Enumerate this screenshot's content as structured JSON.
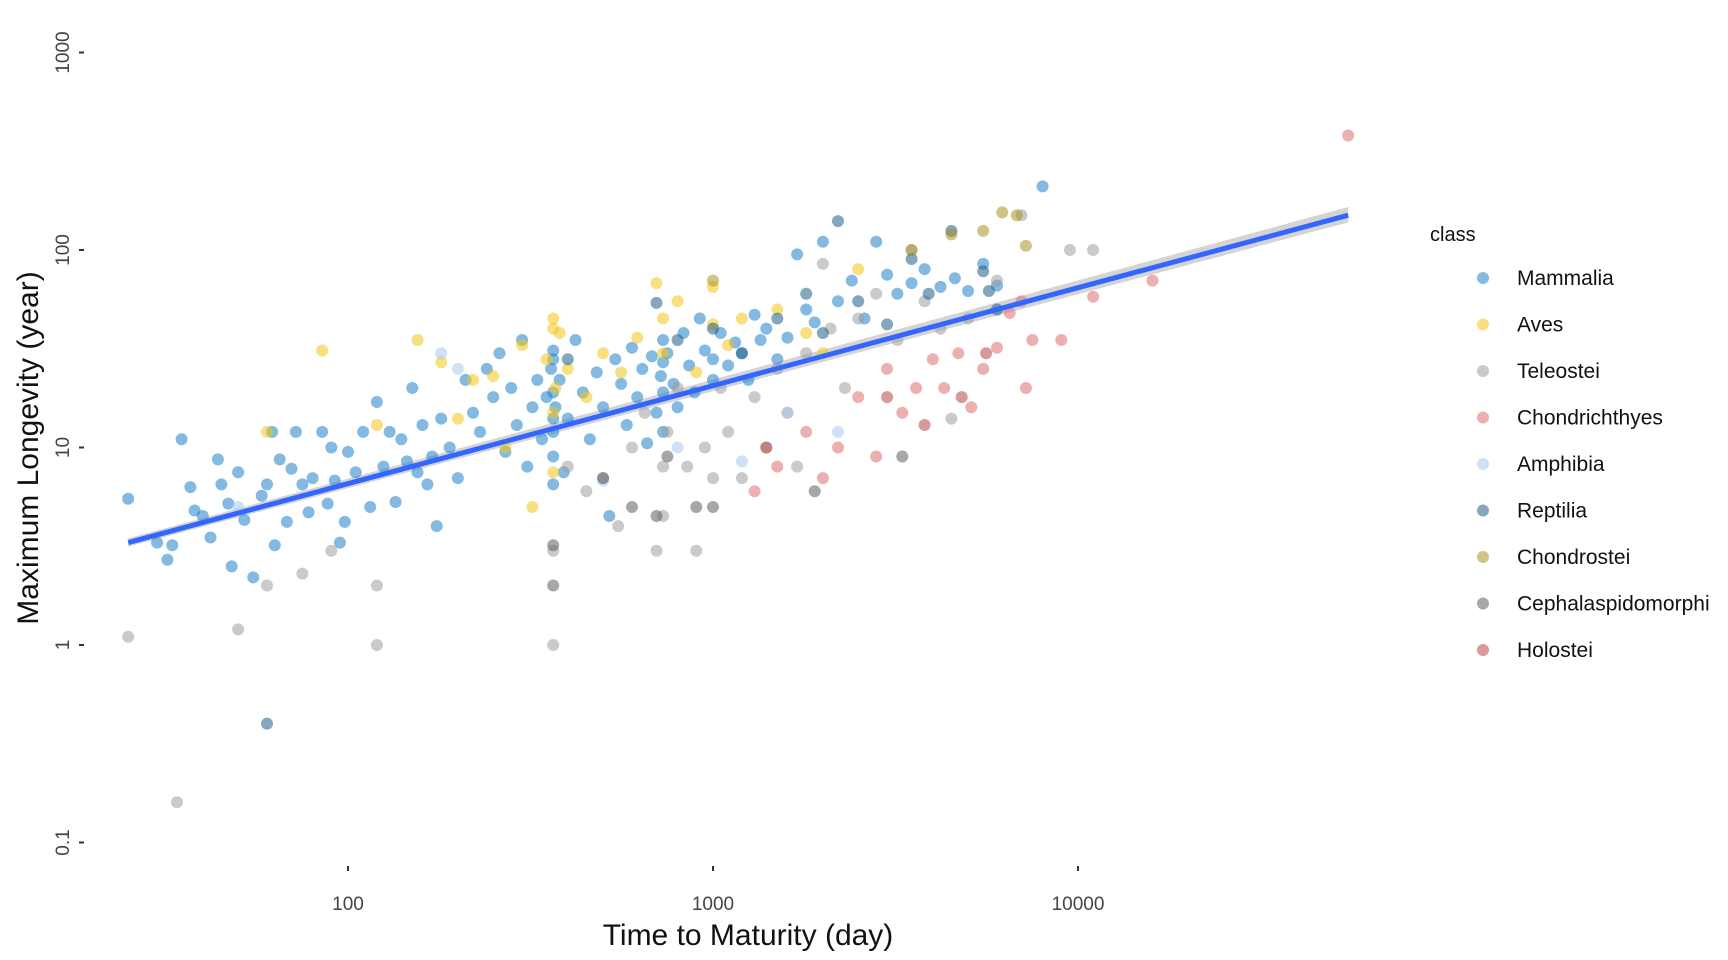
{
  "chart_data": {
    "type": "scatter",
    "title": "",
    "xlabel": "Time to Maturity (day)",
    "ylabel": "Maximum Longevity (year)",
    "x_scale": "log10",
    "y_scale": "log10",
    "xlim": [
      25,
      60000
    ],
    "ylim": [
      0.07,
      1500
    ],
    "x_ticks": [
      {
        "value": 100,
        "label": "100"
      },
      {
        "value": 1000,
        "label": "1000"
      },
      {
        "value": 10000,
        "label": "10000"
      }
    ],
    "y_ticks": [
      {
        "value": 0.1,
        "label": "0.1"
      },
      {
        "value": 1,
        "label": "1"
      },
      {
        "value": 10,
        "label": "10"
      },
      {
        "value": 100,
        "label": "100"
      },
      {
        "value": 1000,
        "label": "1000"
      }
    ],
    "grid": false,
    "legend": {
      "title": "class",
      "placement": "right"
    },
    "series": [
      {
        "name": "Mammalia",
        "color": "#1f7fc9",
        "points": [
          [
            25,
            5.5
          ],
          [
            30,
            3.3
          ],
          [
            32,
            2.7
          ],
          [
            33,
            3.2
          ],
          [
            35,
            11
          ],
          [
            37,
            6.3
          ],
          [
            38,
            4.8
          ],
          [
            40,
            4.5
          ],
          [
            42,
            3.5
          ],
          [
            44,
            8.7
          ],
          [
            45,
            6.5
          ],
          [
            47,
            5.2
          ],
          [
            48,
            2.5
          ],
          [
            50,
            7.5
          ],
          [
            52,
            4.3
          ],
          [
            55,
            2.2
          ],
          [
            58,
            5.7
          ],
          [
            60,
            6.5
          ],
          [
            62,
            12
          ],
          [
            63,
            3.2
          ],
          [
            65,
            8.7
          ],
          [
            68,
            4.2
          ],
          [
            70,
            7.8
          ],
          [
            72,
            12
          ],
          [
            75,
            6.5
          ],
          [
            78,
            4.7
          ],
          [
            80,
            7
          ],
          [
            85,
            12
          ],
          [
            88,
            5.2
          ],
          [
            90,
            10
          ],
          [
            92,
            6.8
          ],
          [
            95,
            3.3
          ],
          [
            98,
            4.2
          ],
          [
            100,
            9.5
          ],
          [
            105,
            7.5
          ],
          [
            110,
            12
          ],
          [
            115,
            5
          ],
          [
            120,
            17
          ],
          [
            125,
            8
          ],
          [
            130,
            12
          ],
          [
            135,
            5.3
          ],
          [
            140,
            11
          ],
          [
            145,
            8.5
          ],
          [
            150,
            20
          ],
          [
            155,
            7.5
          ],
          [
            160,
            13
          ],
          [
            165,
            6.5
          ],
          [
            170,
            9
          ],
          [
            175,
            4
          ],
          [
            180,
            14
          ],
          [
            190,
            10
          ],
          [
            200,
            7
          ],
          [
            210,
            22
          ],
          [
            220,
            15
          ],
          [
            230,
            12
          ],
          [
            240,
            25
          ],
          [
            250,
            18
          ],
          [
            260,
            30
          ],
          [
            270,
            9.5
          ],
          [
            280,
            20
          ],
          [
            290,
            13
          ],
          [
            300,
            35
          ],
          [
            310,
            8
          ],
          [
            320,
            16
          ],
          [
            330,
            22
          ],
          [
            340,
            11
          ],
          [
            350,
            18
          ],
          [
            360,
            25
          ],
          [
            365,
            14
          ],
          [
            365,
            28
          ],
          [
            365,
            9
          ],
          [
            365,
            19
          ],
          [
            365,
            6.5
          ],
          [
            365,
            12
          ],
          [
            365,
            31
          ],
          [
            370,
            16
          ],
          [
            380,
            22
          ],
          [
            390,
            7.5
          ],
          [
            400,
            14
          ],
          [
            420,
            35
          ],
          [
            440,
            19
          ],
          [
            460,
            11
          ],
          [
            480,
            24
          ],
          [
            500,
            16
          ],
          [
            520,
            4.5
          ],
          [
            540,
            28
          ],
          [
            560,
            21
          ],
          [
            580,
            13
          ],
          [
            600,
            32
          ],
          [
            620,
            18
          ],
          [
            640,
            25
          ],
          [
            660,
            10.5
          ],
          [
            680,
            29
          ],
          [
            700,
            15
          ],
          [
            720,
            23
          ],
          [
            730,
            35
          ],
          [
            730,
            19
          ],
          [
            730,
            12
          ],
          [
            730,
            27
          ],
          [
            750,
            30
          ],
          [
            780,
            21
          ],
          [
            800,
            16
          ],
          [
            830,
            38
          ],
          [
            860,
            26
          ],
          [
            890,
            19
          ],
          [
            920,
            45
          ],
          [
            950,
            31
          ],
          [
            1000,
            22
          ],
          [
            1000,
            28
          ],
          [
            1050,
            38
          ],
          [
            1100,
            26
          ],
          [
            1150,
            34
          ],
          [
            1200,
            30
          ],
          [
            1250,
            22
          ],
          [
            1300,
            47
          ],
          [
            1350,
            35
          ],
          [
            1400,
            40
          ],
          [
            1500,
            28
          ],
          [
            1600,
            36
          ],
          [
            1700,
            95
          ],
          [
            1800,
            50
          ],
          [
            1900,
            43
          ],
          [
            2000,
            110
          ],
          [
            2200,
            55
          ],
          [
            2400,
            70
          ],
          [
            2600,
            45
          ],
          [
            2800,
            110
          ],
          [
            3000,
            75
          ],
          [
            3200,
            60
          ],
          [
            3500,
            68
          ],
          [
            3800,
            80
          ],
          [
            4200,
            65
          ],
          [
            4600,
            72
          ],
          [
            5000,
            62
          ],
          [
            5500,
            85
          ],
          [
            6000,
            66
          ],
          [
            8000,
            210
          ]
        ]
      },
      {
        "name": "Aves",
        "color": "#f2c417",
        "points": [
          [
            60,
            12
          ],
          [
            85,
            31
          ],
          [
            120,
            13
          ],
          [
            155,
            35
          ],
          [
            180,
            27
          ],
          [
            200,
            14
          ],
          [
            220,
            22
          ],
          [
            250,
            23
          ],
          [
            270,
            10
          ],
          [
            300,
            33
          ],
          [
            320,
            5
          ],
          [
            350,
            28
          ],
          [
            365,
            45
          ],
          [
            365,
            40
          ],
          [
            365,
            15
          ],
          [
            365,
            7.5
          ],
          [
            370,
            20
          ],
          [
            380,
            38
          ],
          [
            400,
            25
          ],
          [
            450,
            18
          ],
          [
            500,
            30
          ],
          [
            560,
            24
          ],
          [
            620,
            36
          ],
          [
            700,
            68
          ],
          [
            730,
            30
          ],
          [
            730,
            45
          ],
          [
            800,
            55
          ],
          [
            900,
            24
          ],
          [
            1000,
            42
          ],
          [
            1000,
            65
          ],
          [
            1100,
            33
          ],
          [
            1200,
            45
          ],
          [
            1500,
            50
          ],
          [
            1800,
            38
          ],
          [
            2000,
            30
          ],
          [
            2500,
            80
          ]
        ]
      },
      {
        "name": "Teleostei",
        "color": "#9e9e9e",
        "points": [
          [
            25,
            1.1
          ],
          [
            34,
            0.16
          ],
          [
            50,
            1.2
          ],
          [
            60,
            2
          ],
          [
            75,
            2.3
          ],
          [
            90,
            3
          ],
          [
            120,
            1
          ],
          [
            120,
            2
          ],
          [
            365,
            1
          ],
          [
            365,
            3
          ],
          [
            400,
            8
          ],
          [
            450,
            6
          ],
          [
            500,
            7
          ],
          [
            550,
            4
          ],
          [
            600,
            10
          ],
          [
            650,
            15
          ],
          [
            700,
            3
          ],
          [
            730,
            8
          ],
          [
            730,
            4.5
          ],
          [
            750,
            12
          ],
          [
            800,
            20
          ],
          [
            850,
            8
          ],
          [
            900,
            3
          ],
          [
            950,
            10
          ],
          [
            1000,
            7
          ],
          [
            1050,
            20
          ],
          [
            1100,
            12
          ],
          [
            1200,
            7
          ],
          [
            1300,
            18
          ],
          [
            1400,
            10
          ],
          [
            1500,
            25
          ],
          [
            1600,
            15
          ],
          [
            1700,
            8
          ],
          [
            1800,
            30
          ],
          [
            2000,
            85
          ],
          [
            2100,
            40
          ],
          [
            2300,
            20
          ],
          [
            2500,
            45
          ],
          [
            2800,
            60
          ],
          [
            3200,
            35
          ],
          [
            3500,
            100
          ],
          [
            3800,
            55
          ],
          [
            4200,
            40
          ],
          [
            4500,
            14
          ],
          [
            5000,
            45
          ],
          [
            6000,
            70
          ],
          [
            7000,
            150
          ],
          [
            9500,
            100
          ],
          [
            11000,
            100
          ]
        ]
      },
      {
        "name": "Chondrichthyes",
        "color": "#de6f6f",
        "points": [
          [
            1300,
            6
          ],
          [
            1500,
            8
          ],
          [
            1800,
            12
          ],
          [
            2000,
            7
          ],
          [
            2200,
            10
          ],
          [
            2500,
            18
          ],
          [
            2800,
            9
          ],
          [
            3000,
            25
          ],
          [
            3300,
            15
          ],
          [
            3600,
            20
          ],
          [
            4000,
            28
          ],
          [
            4300,
            20
          ],
          [
            4700,
            30
          ],
          [
            5100,
            16
          ],
          [
            5500,
            25
          ],
          [
            6000,
            32
          ],
          [
            6500,
            48
          ],
          [
            7000,
            55
          ],
          [
            7200,
            20
          ],
          [
            7500,
            35
          ],
          [
            9000,
            35
          ],
          [
            11000,
            58
          ],
          [
            16000,
            70
          ],
          [
            55000,
            380
          ]
        ]
      },
      {
        "name": "Amphibia",
        "color": "#a8c8ef",
        "points": [
          [
            50,
            5
          ],
          [
            180,
            30
          ],
          [
            200,
            25
          ],
          [
            500,
            6.8
          ],
          [
            800,
            10
          ],
          [
            1200,
            8.5
          ],
          [
            1600,
            15
          ],
          [
            2200,
            12
          ]
        ]
      },
      {
        "name": "Reptilia",
        "color": "#1d5f85",
        "points": [
          [
            60,
            0.4
          ],
          [
            400,
            28
          ],
          [
            700,
            54
          ],
          [
            800,
            35
          ],
          [
            1000,
            40
          ],
          [
            1200,
            30
          ],
          [
            1500,
            45
          ],
          [
            1800,
            60
          ],
          [
            2000,
            38
          ],
          [
            2200,
            140
          ],
          [
            2500,
            55
          ],
          [
            3000,
            42
          ],
          [
            3500,
            90
          ],
          [
            3900,
            60
          ],
          [
            4500,
            125
          ],
          [
            5500,
            78
          ],
          [
            5700,
            62
          ],
          [
            6000,
            50
          ]
        ]
      },
      {
        "name": "Chondrostei",
        "color": "#a89220",
        "points": [
          [
            1000,
            70
          ],
          [
            3500,
            100
          ],
          [
            4500,
            120
          ],
          [
            5500,
            125
          ],
          [
            6200,
            155
          ],
          [
            6800,
            150
          ],
          [
            7200,
            105
          ]
        ]
      },
      {
        "name": "Cephalaspidomorphi",
        "color": "#5f5f5f",
        "points": [
          [
            365,
            2
          ],
          [
            365,
            3.2
          ],
          [
            500,
            7
          ],
          [
            600,
            5
          ],
          [
            700,
            4.5
          ],
          [
            750,
            9
          ],
          [
            900,
            5
          ],
          [
            1000,
            5
          ],
          [
            1900,
            6
          ],
          [
            3300,
            9
          ]
        ]
      },
      {
        "name": "Holostei",
        "color": "#b94545",
        "points": [
          [
            1400,
            10
          ],
          [
            3000,
            18
          ],
          [
            3800,
            13
          ],
          [
            4800,
            18
          ],
          [
            5600,
            30
          ]
        ]
      }
    ],
    "trend": {
      "type": "linear fit (log-log)",
      "color": "#3366ff",
      "band_color": "#bdbdbd",
      "points": [
        [
          25,
          3.3
        ],
        [
          55000,
          150
        ]
      ],
      "band": [
        [
          25,
          3.15,
          3.47
        ],
        [
          55000,
          138,
          165
        ]
      ]
    }
  }
}
